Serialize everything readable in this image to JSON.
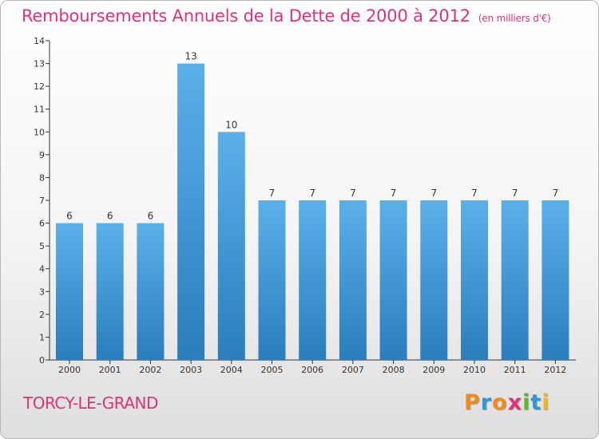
{
  "header": {
    "title": "Remboursements Annuels de la Dette de 2000 à 2012",
    "unit": "(en milliers d'€)"
  },
  "footer": {
    "commune": "TORCY-LE-GRAND",
    "logo_text": "Proxiti",
    "logo_colors": [
      "#f08a1c",
      "#2a9ad6",
      "#f08a1c",
      "#e0317a",
      "#5ab82e",
      "#2a9ad6",
      "#f0b41c"
    ]
  },
  "chart_data": {
    "type": "bar",
    "categories": [
      "2000",
      "2001",
      "2002",
      "2003",
      "2004",
      "2005",
      "2006",
      "2007",
      "2008",
      "2009",
      "2010",
      "2011",
      "2012"
    ],
    "values": [
      6,
      6,
      6,
      13,
      10,
      7,
      7,
      7,
      7,
      7,
      7,
      7,
      7
    ],
    "value_labels": [
      "6",
      "6",
      "6",
      "13",
      "10",
      "7",
      "7",
      "7",
      "7",
      "7",
      "7",
      "7",
      "7"
    ],
    "ylim": [
      0,
      14
    ],
    "yticks": [
      0,
      1,
      2,
      3,
      4,
      5,
      6,
      7,
      8,
      9,
      10,
      11,
      12,
      13,
      14
    ],
    "grid": false,
    "colors": {
      "bar_top": "#5bb0ea",
      "bar_bottom": "#2b7dbd",
      "axis": "#333333",
      "text": "#333333"
    }
  }
}
